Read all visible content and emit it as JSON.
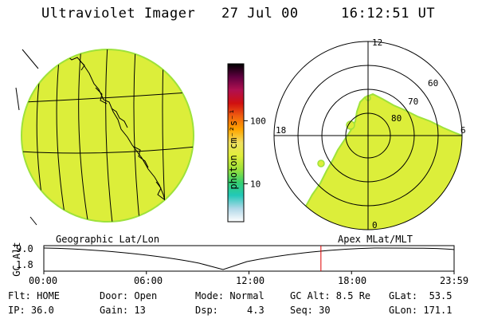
{
  "header": {
    "title": "Ultraviolet Imager",
    "date": "27 Jul 00",
    "time": "16:12:51 UT"
  },
  "colorbar": {
    "unit_label": "photon cm⁻²s⁻¹",
    "ticks": [
      "100",
      "10"
    ],
    "tick_values": [
      100,
      10
    ],
    "range_min": 2.5,
    "range_max": 800,
    "colors": [
      "#ffffff",
      "#b0d8e8",
      "#22c8b8",
      "#36d070",
      "#9ee23a",
      "#dfee3a",
      "#f0e060",
      "#ffa500",
      "#f06010",
      "#d01010",
      "#b01050",
      "#600040",
      "#000000"
    ]
  },
  "polar": {
    "mlt_labels": [
      "12",
      "18",
      "6",
      "0"
    ],
    "lat_labels": [
      "60",
      "70",
      "80"
    ]
  },
  "panel_labels": {
    "left": "Geographic Lat/Lon",
    "right": "Apex MLat/MLT"
  },
  "timeline": {
    "y_axis_label": "GC Alt",
    "y_ticks": [
      "9.0",
      "1.8"
    ],
    "x_ticks": [
      "00:00",
      "06:00",
      "12:00",
      "18:00",
      "23:59"
    ],
    "current_time_hours": 16.21,
    "marker_color": "#e00000"
  },
  "info": {
    "row1": {
      "flt": "Flt: HOME",
      "door": "Door: Open",
      "mode": "Mode: Normal",
      "gcalt": "GC Alt: 8.5 Re",
      "glat": "GLat:  53.5"
    },
    "row2": {
      "ip": "IP: 36.0",
      "gain": "Gain: 13",
      "dsp": "Dsp:     4.3",
      "seq": "Seq: 30",
      "glon": "GLon: 171.1"
    }
  },
  "colors": {
    "emission": "#dcee3a",
    "emission_edge": "#9ee23a",
    "line": "#000000"
  }
}
